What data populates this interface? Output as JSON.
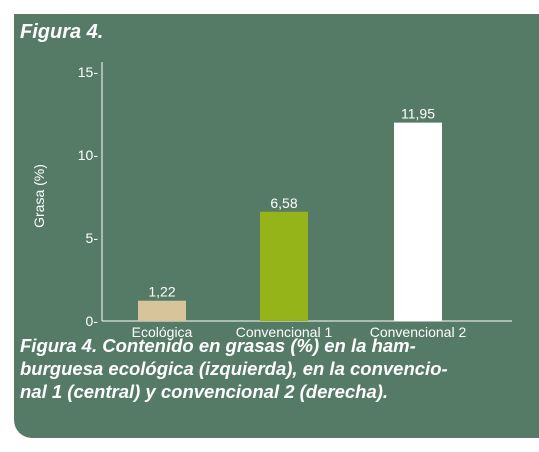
{
  "figure_heading": "Figura 4.",
  "caption": "Figura 4. Contenido en grasas (%) en la ham-burguesa ecológica (izquierda), en la convencio-nal 1 (central) y convencional 2 (derecha).",
  "caption_lines": [
    "Figura 4. Contenido en grasas (%) en la ham-",
    "burguesa ecológica (izquierda), en la convencio-",
    "nal 1 (central) y convencional 2 (derecha)."
  ],
  "colors": {
    "panel_bg": "#557b67",
    "axis": "#ffffff",
    "text": "#ffffff"
  },
  "chart_data": {
    "type": "bar",
    "title": "",
    "xlabel": "",
    "ylabel": "Grasa (%)",
    "ylim": [
      0,
      15
    ],
    "yticks": [
      0,
      5,
      10,
      15
    ],
    "ytick_labels": [
      "0-",
      "5-",
      "10-",
      "15-"
    ],
    "categories": [
      "Ecológica",
      "Convencional 1",
      "Convencional 2"
    ],
    "values": [
      1.22,
      6.58,
      11.95
    ],
    "value_labels": [
      "1,22",
      "6,58",
      "11,95"
    ],
    "bar_colors": [
      "#d8c49a",
      "#95b41a",
      "#ffffff"
    ],
    "grid": false,
    "legend": "none"
  }
}
